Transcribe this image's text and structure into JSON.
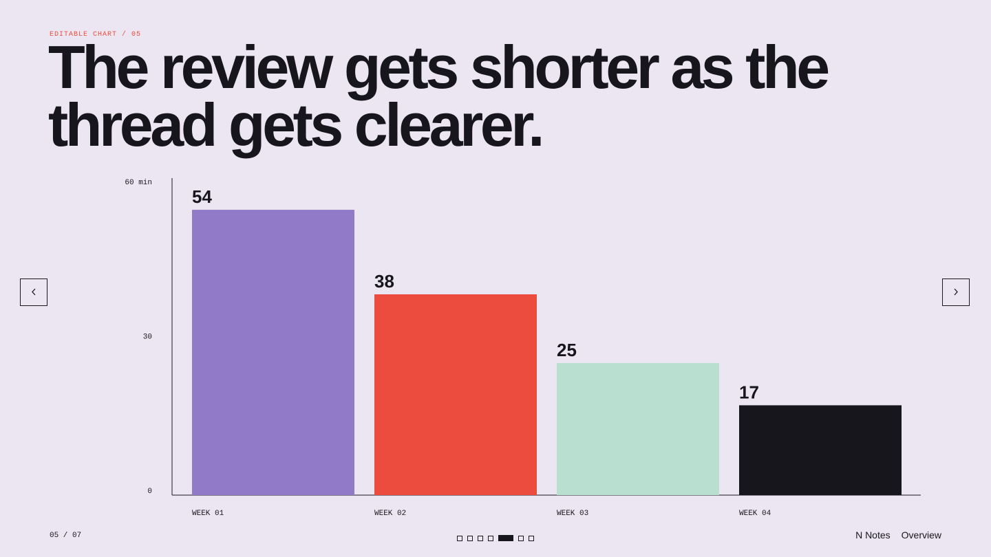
{
  "header": {
    "eyebrow": "EDITABLE CHART / 05",
    "title": "The review gets shorter as the thread gets clearer."
  },
  "chart_data": {
    "type": "bar",
    "categories": [
      "WEEK 01",
      "WEEK 02",
      "WEEK 03",
      "WEEK 04"
    ],
    "values": [
      54,
      38,
      25,
      17
    ],
    "colors": [
      "#917ac7",
      "#ec4c3e",
      "#b8dfd0",
      "#18161d"
    ],
    "ylim": [
      0,
      60
    ],
    "yticks": [
      0,
      30,
      {
        "value": 60,
        "label": "60 min"
      }
    ],
    "grid": false
  },
  "footer": {
    "page": "05 / 07",
    "notes": "N Notes",
    "overview": "Overview"
  }
}
